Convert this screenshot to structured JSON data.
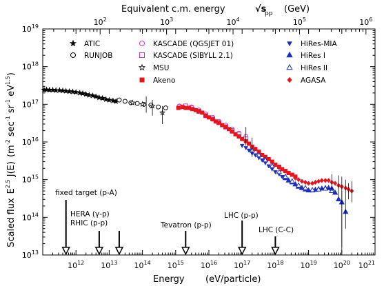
{
  "chart_data": {
    "type": "scatter",
    "top_axis_title": "Equivalent c.m. energy",
    "top_axis_sqrt": "√s",
    "top_axis_sub": "pp",
    "top_axis_unit": "(GeV)",
    "top_axis_ticks": [
      {
        "value": 100,
        "label": "10",
        "exp": "2"
      },
      {
        "value": 1000,
        "label": "10",
        "exp": "3"
      },
      {
        "value": 10000,
        "label": "10",
        "exp": "4"
      },
      {
        "value": 100000,
        "label": "10",
        "exp": "5"
      },
      {
        "value": 1000000,
        "label": "10",
        "exp": "6"
      }
    ],
    "xlabel": "Energy",
    "xlabel_unit": "(eV/particle)",
    "ylabel_main": "Scaled flux",
    "ylabel_formula": "E",
    "ylabel_formula_exp": "2.5",
    "ylabel_formula_rest": " J(E)",
    "ylabel_units": "(m",
    "ylabel_units_exp1": "-2",
    "ylabel_units_mid": " sec",
    "ylabel_units_exp2": "-1",
    "ylabel_units_mid2": " sr",
    "ylabel_units_exp3": "-1",
    "ylabel_units_mid3": " eV",
    "ylabel_units_exp4": "1.5",
    "ylabel_units_end": ")",
    "x_scale": "log",
    "y_scale": "log",
    "xlim": [
      100000000000.0,
      1e+21
    ],
    "ylim": [
      10000000000000.0,
      1e+19
    ],
    "x_ticks": [
      {
        "value": 1000000000000.0,
        "label": "10",
        "exp": "12"
      },
      {
        "value": 10000000000000.0,
        "label": "10",
        "exp": "13"
      },
      {
        "value": 100000000000000.0,
        "label": "10",
        "exp": "14"
      },
      {
        "value": 1000000000000000.0,
        "label": "10",
        "exp": "15"
      },
      {
        "value": 1e+16,
        "label": "10",
        "exp": "16"
      },
      {
        "value": 1e+17,
        "label": "10",
        "exp": "17"
      },
      {
        "value": 1e+18,
        "label": "10",
        "exp": "18"
      },
      {
        "value": 1e+19,
        "label": "10",
        "exp": "19"
      },
      {
        "value": 1e+20,
        "label": "10",
        "exp": "20"
      },
      {
        "value": 1e+21,
        "label": "10",
        "exp": "21"
      }
    ],
    "y_ticks": [
      {
        "value": 10000000000000.0,
        "label": "10",
        "exp": "13"
      },
      {
        "value": 100000000000000.0,
        "label": "10",
        "exp": "14"
      },
      {
        "value": 1000000000000000.0,
        "label": "10",
        "exp": "15"
      },
      {
        "value": 1e+16,
        "label": "10",
        "exp": "16"
      },
      {
        "value": 1e+17,
        "label": "10",
        "exp": "17"
      },
      {
        "value": 1e+18,
        "label": "10",
        "exp": "18"
      },
      {
        "value": 1e+19,
        "label": "10",
        "exp": "19"
      }
    ],
    "legend": [
      {
        "name": "ATIC",
        "marker": "star-filled",
        "color": "#000000"
      },
      {
        "name": "RUNJOB",
        "marker": "circle-open",
        "color": "#000000"
      },
      {
        "name": "KASCADE (QGSJET 01)",
        "marker": "circle-open",
        "color": "#cc33cc"
      },
      {
        "name": "KASCADE (SIBYLL 2.1)",
        "marker": "square-open",
        "color": "#cc33cc"
      },
      {
        "name": "MSU",
        "marker": "star-open",
        "color": "#000000"
      },
      {
        "name": "Akeno",
        "marker": "square-filled",
        "color": "#e8141c"
      },
      {
        "name": "HiRes-MIA",
        "marker": "triangle-down-filled",
        "color": "#1a2fbf"
      },
      {
        "name": "HiRes I",
        "marker": "triangle-up-filled",
        "color": "#1a2fbf"
      },
      {
        "name": "HiRes II",
        "marker": "triangle-up-open",
        "color": "#1a2fbf"
      },
      {
        "name": "AGASA",
        "marker": "diamond-filled",
        "color": "#e8141c"
      }
    ],
    "series": [
      {
        "name": "ATIC",
        "marker": "star-filled",
        "color": "#000000",
        "points": [
          [
            110000000000.0,
            2.4e+17
          ],
          [
            130000000000.0,
            2.45e+17
          ],
          [
            160000000000.0,
            2.4e+17
          ],
          [
            200000000000.0,
            2.4e+17
          ],
          [
            250000000000.0,
            2.35e+17
          ],
          [
            320000000000.0,
            2.35e+17
          ],
          [
            400000000000.0,
            2.3e+17
          ],
          [
            500000000000.0,
            2.25e+17
          ],
          [
            630000000000.0,
            2.2e+17
          ],
          [
            800000000000.0,
            2.15e+17
          ],
          [
            1000000000000.0,
            2.1e+17
          ],
          [
            1300000000000.0,
            2e+17
          ],
          [
            1600000000000.0,
            1.95e+17
          ],
          [
            2000000000000.0,
            1.85e+17
          ],
          [
            2500000000000.0,
            1.75e+17
          ],
          [
            3200000000000.0,
            1.7e+17
          ],
          [
            4000000000000.0,
            1.6e+17
          ],
          [
            5000000000000.0,
            1.5e+17
          ],
          [
            6300000000000.0,
            1.45e+17
          ],
          [
            8000000000000.0,
            1.35e+17
          ],
          [
            10000000000000.0,
            1.3e+17
          ],
          [
            13000000000000.0,
            1.25e+17
          ],
          [
            16000000000000.0,
            1.2e+17
          ]
        ]
      },
      {
        "name": "RUNJOB",
        "marker": "circle-open",
        "color": "#000000",
        "points": [
          [
            20000000000000.0,
            1.3e+17
          ],
          [
            30000000000000.0,
            1.2e+17
          ],
          [
            45000000000000.0,
            1.1e+17
          ],
          [
            70000000000000.0,
            1.05e+17
          ],
          [
            110000000000000.0,
            1e+17
          ],
          [
            180000000000000.0,
            9.5e+16
          ],
          [
            300000000000000.0,
            8.5e+16
          ],
          [
            500000000000000.0,
            8e+16
          ]
        ]
      },
      {
        "name": "MSU",
        "marker": "star-open",
        "color": "#000000",
        "points": [
          [
            50000000000000.0,
            1.1e+17
          ],
          [
            100000000000000.0,
            1e+17
          ],
          [
            200000000000000.0,
            9e+16
          ],
          [
            400000000000000.0,
            6e+16
          ]
        ]
      },
      {
        "name": "KASCADE (QGSJET 01)",
        "marker": "circle-open",
        "color": "#cc33cc",
        "points": [
          [
            1300000000000000.0,
            9e+16
          ],
          [
            2000000000000000.0,
            9e+16
          ],
          [
            3000000000000000.0,
            8.5e+16
          ],
          [
            5000000000000000.0,
            7e+16
          ],
          [
            8000000000000000.0,
            5.5e+16
          ],
          [
            1.3e+16,
            4.5e+16
          ],
          [
            2e+16,
            3.5e+16
          ],
          [
            3.2e+16,
            2.8e+16
          ],
          [
            5e+16,
            2.2e+16
          ],
          [
            8e+16,
            1.7e+16
          ],
          [
            1.3e+17,
            1.4e+16
          ]
        ]
      },
      {
        "name": "KASCADE (SIBYLL 2.1)",
        "marker": "square-open",
        "color": "#cc33cc",
        "points": [
          [
            1300000000000000.0,
            8.5e+16
          ],
          [
            2000000000000000.0,
            9e+16
          ],
          [
            3000000000000000.0,
            8e+16
          ],
          [
            5000000000000000.0,
            6.5e+16
          ],
          [
            8000000000000000.0,
            5e+16
          ],
          [
            1.3e+16,
            4.2e+16
          ],
          [
            2e+16,
            3.3e+16
          ],
          [
            3.2e+16,
            2.5e+16
          ],
          [
            5e+16,
            2e+16
          ],
          [
            8e+16,
            1.6e+16
          ],
          [
            1.3e+17,
            1.2e+16
          ]
        ]
      },
      {
        "name": "Akeno",
        "marker": "square-filled",
        "color": "#e8141c",
        "points": [
          [
            1200000000000000.0,
            8e+16
          ],
          [
            1600000000000000.0,
            8.5e+16
          ],
          [
            2000000000000000.0,
            8e+16
          ],
          [
            2500000000000000.0,
            8e+16
          ],
          [
            3200000000000000.0,
            7.5e+16
          ],
          [
            4000000000000000.0,
            7e+16
          ],
          [
            5000000000000000.0,
            6.5e+16
          ],
          [
            6300000000000000.0,
            6e+16
          ],
          [
            8000000000000000.0,
            5e+16
          ],
          [
            1e+16,
            4.5e+16
          ],
          [
            1.3e+16,
            4e+16
          ],
          [
            1.6e+16,
            3.5e+16
          ],
          [
            2e+16,
            3.2e+16
          ],
          [
            2.5e+16,
            2.8e+16
          ],
          [
            3.2e+16,
            2.5e+16
          ],
          [
            4e+16,
            2.2e+16
          ],
          [
            5e+16,
            1.9e+16
          ],
          [
            6.3e+16,
            1.6e+16
          ],
          [
            8e+16,
            1.4e+16
          ],
          [
            1e+17,
            1.2e+16
          ],
          [
            1.3e+17,
            1.05e+16
          ],
          [
            1.6e+17,
            9000000000000000.0
          ],
          [
            2e+17,
            7500000000000000.0
          ],
          [
            2.5e+17,
            6500000000000000.0
          ],
          [
            3.2e+17,
            5500000000000000.0
          ],
          [
            4e+17,
            4500000000000000.0
          ],
          [
            5e+17,
            4000000000000000.0
          ],
          [
            6.3e+17,
            3500000000000000.0
          ],
          [
            8e+17,
            3000000000000000.0
          ],
          [
            1e+18,
            2500000000000000.0
          ],
          [
            1.3e+18,
            2200000000000000.0
          ],
          [
            1.6e+18,
            1900000000000000.0
          ],
          [
            2e+18,
            1700000000000000.0
          ],
          [
            2.5e+18,
            1500000000000000.0
          ],
          [
            3.2e+18,
            1350000000000000.0
          ],
          [
            4e+18,
            1200000000000000.0
          ]
        ]
      },
      {
        "name": "HiRes-MIA",
        "marker": "triangle-down-filled",
        "color": "#1a2fbf",
        "points": [
          [
            1e+17,
            8000000000000000.0
          ],
          [
            1.3e+17,
            7000000000000000.0
          ],
          [
            1.6e+17,
            6000000000000000.0
          ],
          [
            2e+17,
            5000000000000000.0
          ],
          [
            2.5e+17,
            4500000000000000.0
          ],
          [
            3.2e+17,
            3800000000000000.0
          ],
          [
            4e+17,
            3300000000000000.0
          ],
          [
            5e+17,
            2800000000000000.0
          ],
          [
            6.3e+17,
            2300000000000000.0
          ],
          [
            8e+17,
            1900000000000000.0
          ],
          [
            1e+18,
            1600000000000000.0
          ],
          [
            1.3e+18,
            1400000000000000.0
          ],
          [
            1.6e+18,
            1200000000000000.0
          ],
          [
            2e+18,
            1100000000000000.0
          ]
        ]
      },
      {
        "name": "HiRes I",
        "marker": "triangle-up-filled",
        "color": "#1a2fbf",
        "points": [
          [
            2e+18,
            1100000000000000.0
          ],
          [
            2.5e+18,
            950000000000000.0
          ],
          [
            3.2e+18,
            850000000000000.0
          ],
          [
            4e+18,
            750000000000000.0
          ],
          [
            5e+18,
            650000000000000.0
          ],
          [
            6.3e+18,
            600000000000000.0
          ],
          [
            8e+18,
            550000000000000.0
          ],
          [
            1e+19,
            520000000000000.0
          ],
          [
            1.3e+19,
            520000000000000.0
          ],
          [
            1.6e+19,
            540000000000000.0
          ],
          [
            2e+19,
            560000000000000.0
          ],
          [
            2.5e+19,
            580000000000000.0
          ],
          [
            3.2e+19,
            600000000000000.0
          ],
          [
            4e+19,
            600000000000000.0
          ],
          [
            5e+19,
            580000000000000.0
          ],
          [
            6.3e+19,
            450000000000000.0
          ],
          [
            8e+19,
            300000000000000.0
          ],
          [
            1e+20,
            250000000000000.0
          ],
          [
            1.3e+20,
            140000000000000.0
          ]
        ]
      },
      {
        "name": "HiRes II",
        "marker": "triangle-up-open",
        "color": "#1a2fbf",
        "points": [
          [
            2e+17,
            6000000000000000.0
          ],
          [
            3.2e+17,
            4500000000000000.0
          ],
          [
            5e+17,
            3300000000000000.0
          ],
          [
            8e+17,
            2300000000000000.0
          ],
          [
            1.3e+18,
            1600000000000000.0
          ],
          [
            2e+18,
            1200000000000000.0
          ],
          [
            3.2e+18,
            900000000000000.0
          ],
          [
            5e+18,
            700000000000000.0
          ],
          [
            8e+18,
            600000000000000.0
          ],
          [
            1.3e+19,
            530000000000000.0
          ],
          [
            2e+19,
            550000000000000.0
          ],
          [
            3.2e+19,
            580000000000000.0
          ],
          [
            5e+19,
            500000000000000.0
          ]
        ]
      },
      {
        "name": "AGASA",
        "marker": "diamond-filled",
        "color": "#e8141c",
        "points": [
          [
            4e+18,
            1100000000000000.0
          ],
          [
            5e+18,
            1000000000000000.0
          ],
          [
            6.3e+18,
            900000000000000.0
          ],
          [
            8e+18,
            850000000000000.0
          ],
          [
            1e+19,
            800000000000000.0
          ],
          [
            1.3e+19,
            800000000000000.0
          ],
          [
            1.6e+19,
            850000000000000.0
          ],
          [
            2e+19,
            900000000000000.0
          ],
          [
            2.5e+19,
            950000000000000.0
          ],
          [
            3.2e+19,
            950000000000000.0
          ],
          [
            4e+19,
            950000000000000.0
          ],
          [
            5e+19,
            850000000000000.0
          ],
          [
            6.3e+19,
            800000000000000.0
          ],
          [
            8e+19,
            700000000000000.0
          ],
          [
            1e+20,
            650000000000000.0
          ],
          [
            1.3e+20,
            600000000000000.0
          ],
          [
            1.6e+20,
            550000000000000.0
          ],
          [
            2e+20,
            500000000000000.0
          ]
        ]
      }
    ],
    "annotations": [
      {
        "lines": [
          "fixed target (p-A)"
        ],
        "energy": 500000000000.0
      },
      {
        "lines": [
          "HERA (γ-p)",
          "RHIC (p-p)"
        ],
        "energy": 5000000000000.0,
        "energy2": 20000000000000.0
      },
      {
        "lines": [
          "Tevatron (p-p)"
        ],
        "energy": 2000000000000000.0
      },
      {
        "lines": [
          "LHC (p-p)"
        ],
        "energy": 1e+17
      },
      {
        "lines": [
          "LHC (C-C)"
        ],
        "energy": 1e+18
      }
    ]
  }
}
